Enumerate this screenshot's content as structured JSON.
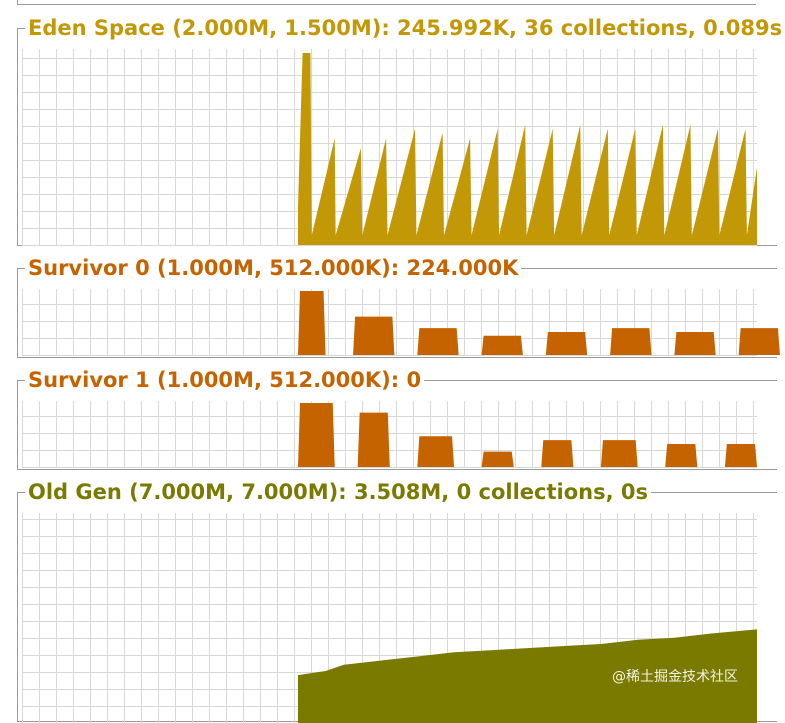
{
  "panels": [
    {
      "id": "eden",
      "title": "Eden Space (2.000M, 1.500M): 245.992K, 36 collections, 0.089s",
      "color": "#c39806",
      "kind": "sawtooth"
    },
    {
      "id": "survivor0",
      "title": "Survivor 0 (1.000M, 512.000K): 224.000K",
      "color": "#c56300",
      "kind": "blocks"
    },
    {
      "id": "survivor1",
      "title": "Survivor 1 (1.000M, 512.000K): 0",
      "color": "#c56300",
      "kind": "blocks"
    },
    {
      "id": "oldgen",
      "title": "Old Gen (7.000M, 7.000M): 3.508M, 0 collections, 0s",
      "color": "#7a7a00",
      "kind": "steps"
    }
  ],
  "chart_data": [
    {
      "type": "area",
      "series": [
        {
          "name": "",
          "values": [
            {
              "x": 0.0,
              "y": 0.2
            },
            {
              "x": 0.01,
              "y": 0.99
            },
            {
              "x": 0.027,
              "y": 0.99
            },
            {
              "x": 0.03,
              "y": 0.05
            },
            {
              "x": 0.08,
              "y": 0.55
            },
            {
              "x": 0.082,
              "y": 0.05
            },
            {
              "x": 0.137,
              "y": 0.5
            },
            {
              "x": 0.14,
              "y": 0.05
            },
            {
              "x": 0.192,
              "y": 0.55
            },
            {
              "x": 0.195,
              "y": 0.05
            },
            {
              "x": 0.255,
              "y": 0.6
            },
            {
              "x": 0.258,
              "y": 0.05
            },
            {
              "x": 0.315,
              "y": 0.58
            },
            {
              "x": 0.318,
              "y": 0.05
            },
            {
              "x": 0.375,
              "y": 0.55
            },
            {
              "x": 0.378,
              "y": 0.05
            },
            {
              "x": 0.435,
              "y": 0.6
            },
            {
              "x": 0.438,
              "y": 0.05
            },
            {
              "x": 0.495,
              "y": 0.62
            },
            {
              "x": 0.498,
              "y": 0.05
            },
            {
              "x": 0.555,
              "y": 0.6
            },
            {
              "x": 0.558,
              "y": 0.05
            },
            {
              "x": 0.615,
              "y": 0.62
            },
            {
              "x": 0.618,
              "y": 0.05
            },
            {
              "x": 0.675,
              "y": 0.6
            },
            {
              "x": 0.678,
              "y": 0.05
            },
            {
              "x": 0.735,
              "y": 0.6
            },
            {
              "x": 0.738,
              "y": 0.05
            },
            {
              "x": 0.795,
              "y": 0.62
            },
            {
              "x": 0.798,
              "y": 0.05
            },
            {
              "x": 0.855,
              "y": 0.62
            },
            {
              "x": 0.858,
              "y": 0.05
            },
            {
              "x": 0.915,
              "y": 0.6
            },
            {
              "x": 0.918,
              "y": 0.05
            },
            {
              "x": 0.975,
              "y": 0.6
            },
            {
              "x": 0.978,
              "y": 0.05
            },
            {
              "x": 1.0,
              "y": 0.4
            }
          ]
        }
      ]
    },
    {
      "type": "bar",
      "bars": [
        {
          "x": 0.0,
          "w": 0.06,
          "y": 1.0
        },
        {
          "x": 0.12,
          "w": 0.09,
          "y": 0.6
        },
        {
          "x": 0.26,
          "w": 0.09,
          "y": 0.42
        },
        {
          "x": 0.4,
          "w": 0.09,
          "y": 0.3
        },
        {
          "x": 0.54,
          "w": 0.09,
          "y": 0.36
        },
        {
          "x": 0.68,
          "w": 0.09,
          "y": 0.42
        },
        {
          "x": 0.82,
          "w": 0.09,
          "y": 0.36
        },
        {
          "x": 0.96,
          "w": 0.09,
          "y": 0.42
        }
      ]
    },
    {
      "type": "bar",
      "bars": [
        {
          "x": 0.0,
          "w": 0.08,
          "y": 1.0
        },
        {
          "x": 0.13,
          "w": 0.07,
          "y": 0.85
        },
        {
          "x": 0.26,
          "w": 0.08,
          "y": 0.48
        },
        {
          "x": 0.4,
          "w": 0.07,
          "y": 0.24
        },
        {
          "x": 0.53,
          "w": 0.07,
          "y": 0.42
        },
        {
          "x": 0.66,
          "w": 0.08,
          "y": 0.42
        },
        {
          "x": 0.8,
          "w": 0.07,
          "y": 0.36
        },
        {
          "x": 0.93,
          "w": 0.07,
          "y": 0.36
        }
      ]
    },
    {
      "type": "area",
      "series": [
        {
          "name": "",
          "values": [
            {
              "x": 0.0,
              "y": 0.23
            },
            {
              "x": 0.06,
              "y": 0.25
            },
            {
              "x": 0.1,
              "y": 0.28
            },
            {
              "x": 0.18,
              "y": 0.3
            },
            {
              "x": 0.26,
              "y": 0.32
            },
            {
              "x": 0.34,
              "y": 0.34
            },
            {
              "x": 0.42,
              "y": 0.35
            },
            {
              "x": 0.5,
              "y": 0.36
            },
            {
              "x": 0.58,
              "y": 0.37
            },
            {
              "x": 0.66,
              "y": 0.38
            },
            {
              "x": 0.74,
              "y": 0.4
            },
            {
              "x": 0.82,
              "y": 0.41
            },
            {
              "x": 0.9,
              "y": 0.43
            },
            {
              "x": 1.0,
              "y": 0.45
            }
          ]
        }
      ]
    }
  ],
  "watermark": "@稀土掘金技术社区"
}
